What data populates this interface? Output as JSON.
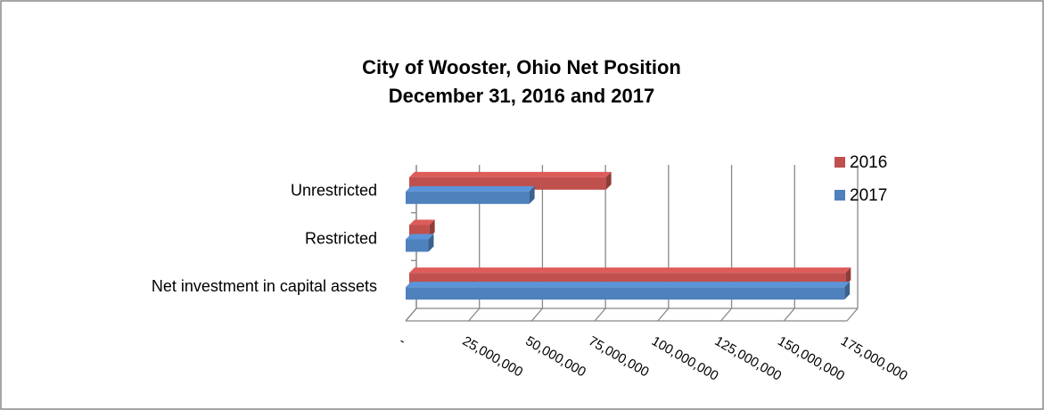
{
  "chart_data": {
    "type": "bar3d_horizontal",
    "title": [
      "City of Wooster, Ohio Net Position",
      "December 31, 2016 and 2017"
    ],
    "categories": [
      "Net investment in capital assets",
      "Restricted",
      "Unrestricted"
    ],
    "series": [
      {
        "name": "2016",
        "color": "#c0504d",
        "values": [
          173000000,
          8000000,
          78000000
        ]
      },
      {
        "name": "2017",
        "color": "#4f81bd",
        "values": [
          174000000,
          9000000,
          49000000
        ]
      }
    ],
    "xlim": [
      0,
      175000000
    ],
    "xticks": [
      {
        "value": 0,
        "label": "-"
      },
      {
        "value": 25000000,
        "label": "25,000,000"
      },
      {
        "value": 50000000,
        "label": "50,000,000"
      },
      {
        "value": 75000000,
        "label": "75,000,000"
      },
      {
        "value": 100000000,
        "label": "100,000,000"
      },
      {
        "value": 125000000,
        "label": "125,000,000"
      },
      {
        "value": 150000000,
        "label": "150,000,000"
      },
      {
        "value": 175000000,
        "label": "175,000,000"
      }
    ],
    "grid": true,
    "legend": "right"
  }
}
